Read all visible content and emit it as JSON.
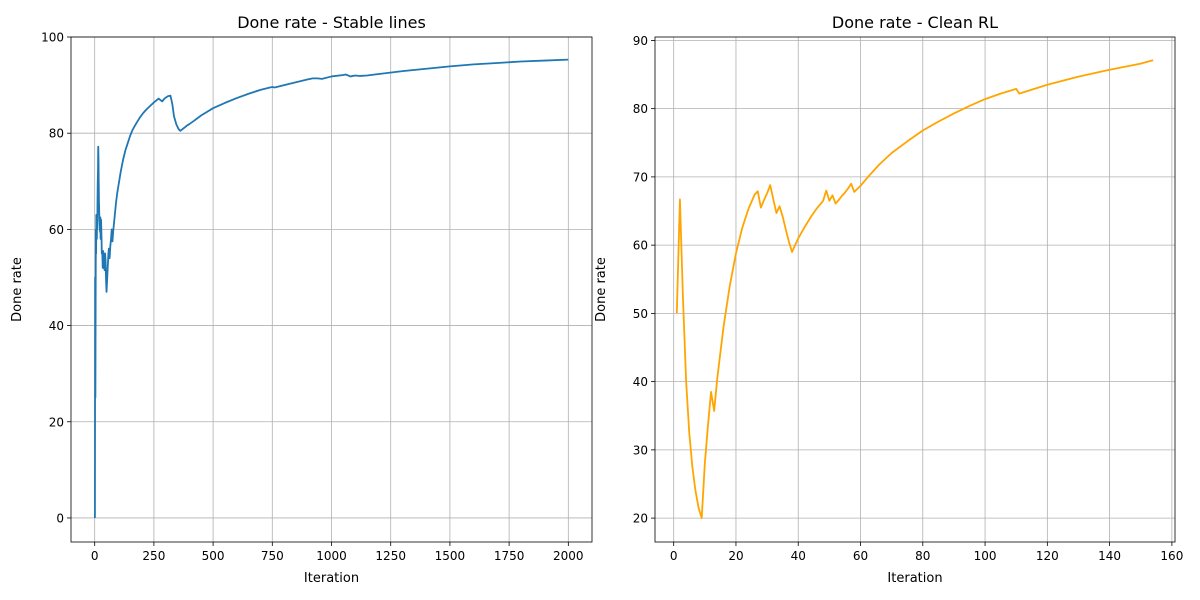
{
  "chart_data": [
    {
      "type": "line",
      "title": "Done rate - Stable lines",
      "xlabel": "Iteration",
      "ylabel": "Done rate",
      "xlim": [
        -100,
        2100
      ],
      "ylim": [
        -5,
        100
      ],
      "xticks": [
        0,
        250,
        500,
        750,
        1000,
        1250,
        1500,
        1750,
        2000
      ],
      "yticks": [
        0,
        20,
        40,
        60,
        80,
        100
      ],
      "grid": true,
      "color": "#1f77b4",
      "series": [
        {
          "name": "Done rate",
          "x": [
            1,
            2,
            3,
            4,
            5,
            6,
            7,
            8,
            9,
            10,
            11,
            12,
            13,
            14,
            15,
            16,
            17,
            18,
            19,
            20,
            21,
            22,
            23,
            24,
            25,
            26,
            27,
            28,
            29,
            30,
            32,
            34,
            36,
            38,
            40,
            42,
            44,
            46,
            48,
            50,
            52,
            54,
            56,
            58,
            60,
            63,
            66,
            69,
            72,
            75,
            78,
            81,
            84,
            87,
            90,
            95,
            100,
            110,
            120,
            130,
            140,
            150,
            160,
            175,
            190,
            205,
            220,
            235,
            250,
            270,
            285,
            290,
            295,
            300,
            310,
            320,
            328,
            335,
            345,
            355,
            362,
            370,
            380,
            390,
            400,
            420,
            450,
            500,
            550,
            600,
            650,
            700,
            740,
            750,
            760,
            800,
            850,
            900,
            920,
            940,
            960,
            1000,
            1050,
            1060,
            1080,
            1100,
            1120,
            1150,
            1200,
            1300,
            1400,
            1500,
            1600,
            1700,
            1800,
            1900,
            2000
          ],
          "values": [
            0,
            50,
            25,
            45,
            60,
            55,
            63,
            59,
            58,
            62,
            60,
            66,
            70,
            72,
            77.2,
            75,
            70,
            66,
            64,
            62,
            61,
            60,
            59.5,
            62.5,
            58,
            59.5,
            62,
            60,
            58,
            55,
            55.5,
            52,
            55.5,
            53,
            52,
            51.5,
            55,
            53.5,
            49.5,
            47,
            49,
            51,
            53,
            55,
            56,
            54,
            56.5,
            58,
            60,
            57.5,
            59.5,
            61,
            62.5,
            64,
            65.5,
            67.5,
            69,
            72,
            74.5,
            76.5,
            78,
            79.5,
            80.7,
            82,
            83.2,
            84.2,
            85,
            85.7,
            86.4,
            87.2,
            86.6,
            86.9,
            87.2,
            87.4,
            87.7,
            87.8,
            86,
            83.5,
            81.8,
            80.8,
            80.5,
            80.8,
            81.2,
            81.6,
            81.9,
            82.6,
            83.7,
            85.2,
            86.3,
            87.3,
            88.2,
            89,
            89.5,
            89.6,
            89.5,
            90,
            90.6,
            91.2,
            91.4,
            91.4,
            91.3,
            91.8,
            92.1,
            92.2,
            91.8,
            92,
            91.9,
            92,
            92.3,
            92.9,
            93.4,
            93.9,
            94.3,
            94.6,
            94.9,
            95.1,
            95.3
          ]
        }
      ]
    },
    {
      "type": "line",
      "title": "Done rate - Clean RL",
      "xlabel": "Iteration",
      "ylabel": "Done rate",
      "xlim": [
        -6,
        161
      ],
      "ylim": [
        16.5,
        90.5
      ],
      "xticks": [
        0,
        20,
        40,
        60,
        80,
        100,
        120,
        140,
        160
      ],
      "yticks": [
        20,
        30,
        40,
        50,
        60,
        70,
        80,
        90
      ],
      "grid": true,
      "color": "#ffa500",
      "series": [
        {
          "name": "Done rate",
          "x": [
            1,
            2,
            3,
            4,
            5,
            6,
            7,
            8,
            9,
            10,
            11,
            12,
            13,
            14,
            16,
            18,
            20,
            22,
            24,
            26,
            27,
            28,
            29,
            30,
            31,
            32,
            33,
            34,
            35,
            36,
            37,
            38,
            39,
            40,
            42,
            44,
            46,
            48,
            49,
            50,
            51,
            52,
            53,
            54,
            55,
            56,
            57,
            58,
            60,
            63,
            66,
            70,
            75,
            80,
            85,
            90,
            95,
            100,
            105,
            110,
            111,
            113,
            120,
            130,
            140,
            150,
            154
          ],
          "values": [
            50,
            66.7,
            52,
            40,
            32.5,
            27.5,
            24,
            21.5,
            20,
            28,
            33.5,
            38.5,
            35.7,
            40.5,
            48,
            54,
            58.8,
            62.5,
            65.3,
            67.4,
            67.9,
            65.5,
            66.6,
            67.6,
            68.8,
            66.7,
            64.7,
            65.7,
            64.2,
            62.3,
            60.5,
            59,
            60,
            61,
            62.6,
            64.1,
            65.4,
            66.5,
            68,
            66.5,
            67.3,
            66.1,
            66.6,
            67.2,
            67.7,
            68.3,
            69,
            67.8,
            68.7,
            70.3,
            71.8,
            73.5,
            75.2,
            76.8,
            78.1,
            79.3,
            80.4,
            81.4,
            82.2,
            82.9,
            82.2,
            82.5,
            83.5,
            84.7,
            85.7,
            86.6,
            87.1
          ]
        }
      ]
    }
  ]
}
